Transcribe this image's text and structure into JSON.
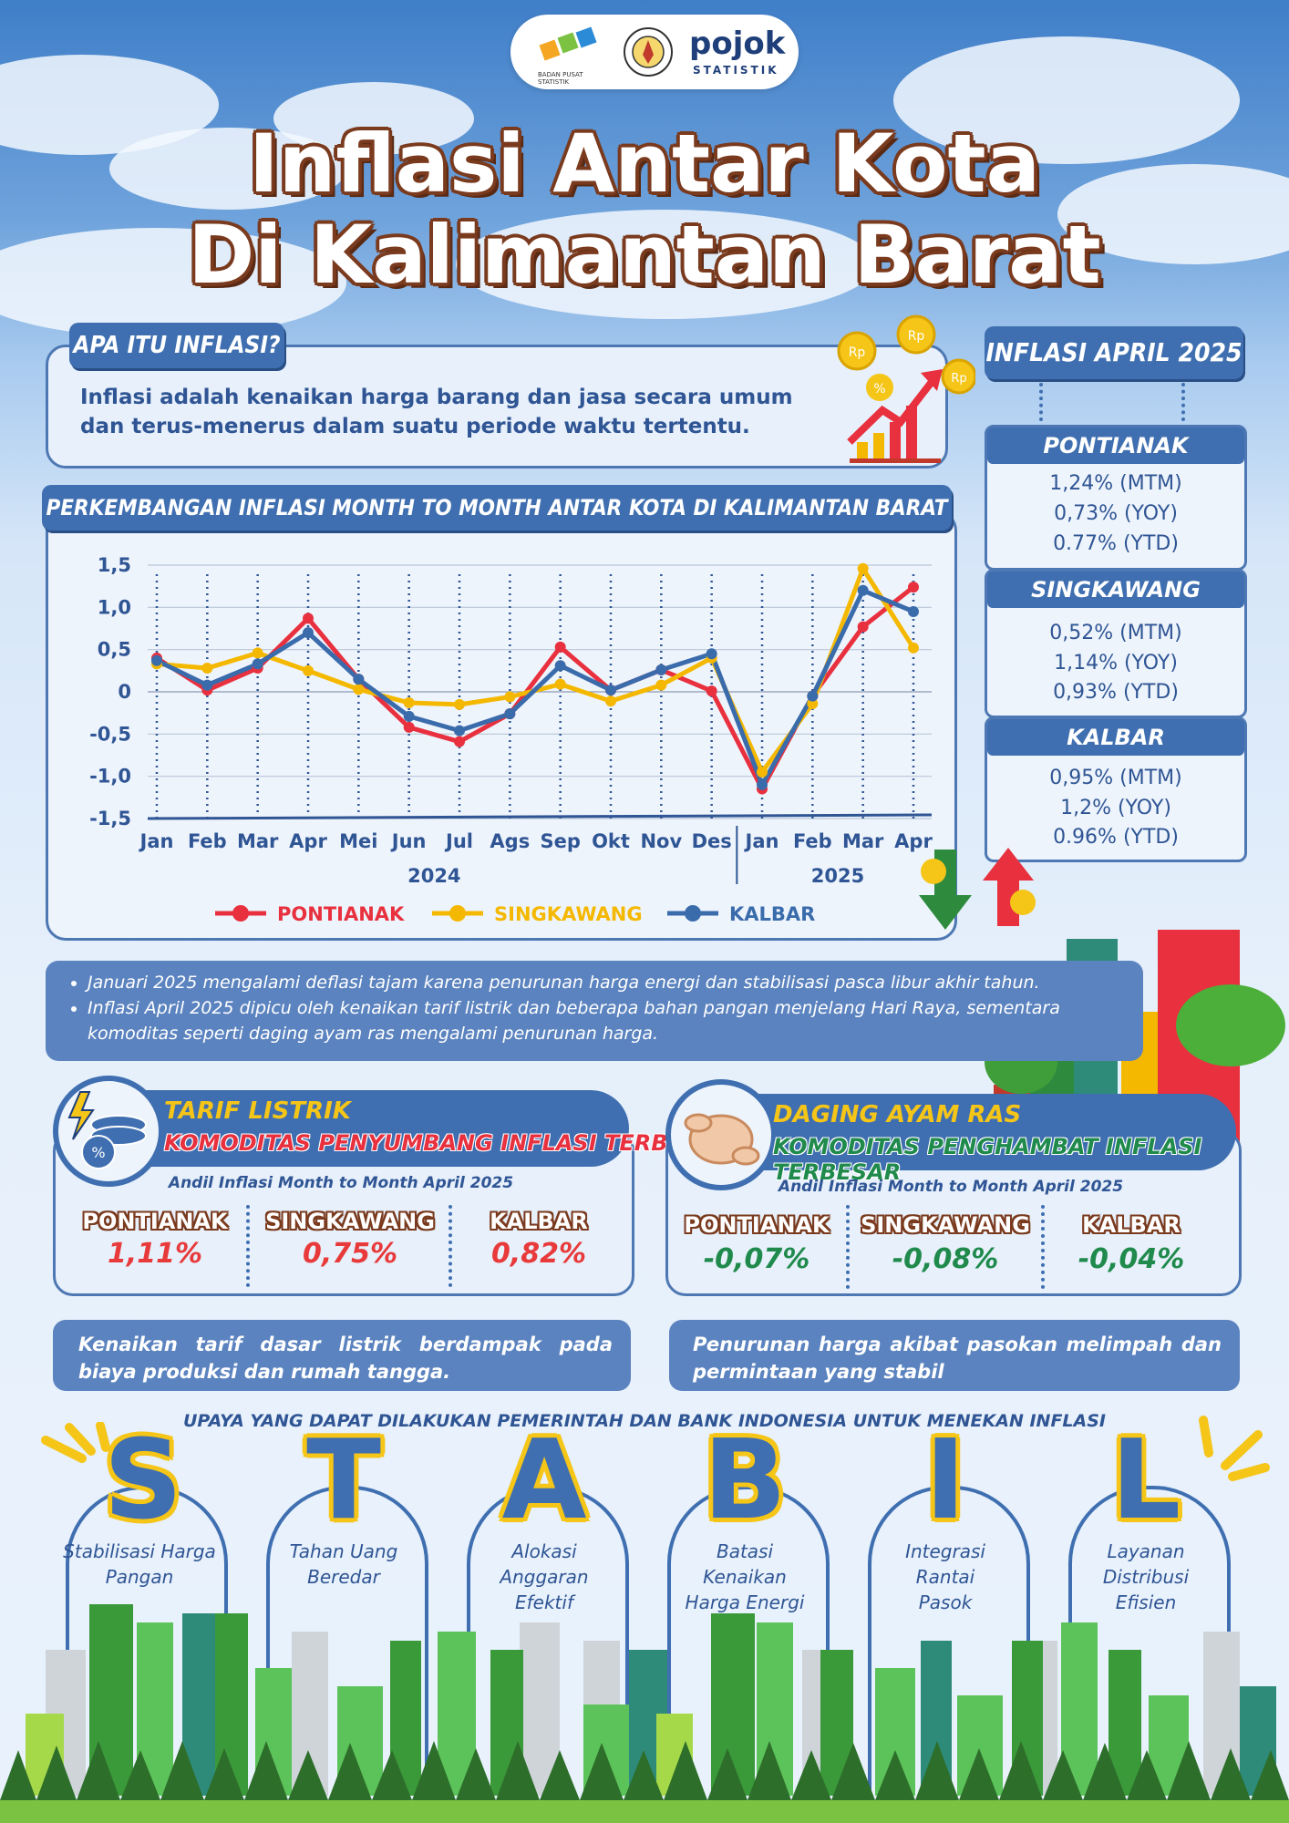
{
  "logos": {
    "bps_caption": "BADAN PUSAT STATISTIK",
    "brand_name": "pojok",
    "brand_sub": "STATISTIK"
  },
  "title": {
    "line1": "Inflasi Antar Kota",
    "line2": "Di Kalimantan Barat"
  },
  "definition": {
    "tag": "APA ITU INFLASI?",
    "text": "Inflasi adalah kenaikan harga barang dan jasa secara umum dan terus-menerus dalam suatu periode waktu tertentu."
  },
  "summary": {
    "tag": "INFLASI APRIL 2025",
    "cities": [
      {
        "name": "PONTIANAK",
        "mtm": "1,24% (MTM)",
        "yoy": "0,73% (YOY)",
        "ytd": "0.77% (YTD)"
      },
      {
        "name": "SINGKAWANG",
        "mtm": "0,52% (MTM)",
        "yoy": "1,14% (YOY)",
        "ytd": "0,93% (YTD)"
      },
      {
        "name": "KALBAR",
        "mtm": "0,95% (MTM)",
        "yoy": "1,2% (YOY)",
        "ytd": "0.96% (YTD)"
      }
    ]
  },
  "chart_data": {
    "type": "line",
    "title": "PERKEMBANGAN INFLASI MONTH TO MONTH ANTAR KOTA DI KALIMANTAN BARAT",
    "categories": [
      "Jan",
      "Feb",
      "Mar",
      "Apr",
      "Mei",
      "Jun",
      "Jul",
      "Ags",
      "Sep",
      "Okt",
      "Nov",
      "Des",
      "Jan",
      "Feb",
      "Mar",
      "Apr"
    ],
    "year_labels": [
      "2024",
      "2025"
    ],
    "ylim": [
      -1.5,
      1.5
    ],
    "yticks": [
      "1,5",
      "1,0",
      "0,5",
      "0",
      "-0,5",
      "-1,0",
      "-1,5"
    ],
    "legend_position": "bottom",
    "series": [
      {
        "name": "PONTIANAK",
        "color": "#e8303e",
        "values": [
          0.4,
          0.02,
          0.28,
          0.87,
          0.15,
          -0.42,
          -0.59,
          -0.26,
          0.53,
          0.02,
          0.26,
          0.01,
          -1.15,
          -0.05,
          0.77,
          1.24
        ]
      },
      {
        "name": "SINGKAWANG",
        "color": "#f5b800",
        "values": [
          0.33,
          0.28,
          0.46,
          0.25,
          0.03,
          -0.13,
          -0.15,
          -0.06,
          0.09,
          -0.11,
          0.08,
          0.4,
          -0.95,
          -0.14,
          1.46,
          0.52
        ]
      },
      {
        "name": "KALBAR",
        "color": "#3a6bab",
        "values": [
          0.37,
          0.08,
          0.33,
          0.7,
          0.15,
          -0.29,
          -0.46,
          -0.26,
          0.31,
          0.02,
          0.26,
          0.45,
          -1.1,
          -0.05,
          1.2,
          0.95
        ]
      }
    ]
  },
  "notes": [
    "Januari 2025 mengalami deflasi tajam karena penurunan harga energi dan stabilisasi pasca libur akhir tahun.",
    "Inflasi April 2025 dipicu oleh kenaikan tarif listrik dan beberapa bahan pangan menjelang Hari Raya, sementara komoditas seperti daging ayam ras mengalami penurunan harga."
  ],
  "contributor": {
    "commodity": "TARIF LISTRIK",
    "role": "KOMODITAS PENYUMBANG INFLASI TERBESAR",
    "subtitle": "Andil Inflasi Month to Month April 2025",
    "cities": [
      {
        "name": "PONTIANAK",
        "value": "1,11%"
      },
      {
        "name": "SINGKAWANG",
        "value": "0,75%"
      },
      {
        "name": "KALBAR",
        "value": "0,82%"
      }
    ],
    "explanation": "Kenaikan tarif dasar listrik berdampak pada biaya produksi dan rumah tangga."
  },
  "inhibitor": {
    "commodity": "DAGING AYAM RAS",
    "role": "KOMODITAS PENGHAMBAT INFLASI TERBESAR",
    "subtitle": "Andil Inflasi Month to Month April 2025",
    "cities": [
      {
        "name": "PONTIANAK",
        "value": "-0,07%"
      },
      {
        "name": "SINGKAWANG",
        "value": "-0,08%"
      },
      {
        "name": "KALBAR",
        "value": "-0,04%"
      }
    ],
    "explanation": "Penurunan harga akibat pasokan melimpah dan permintaan yang stabil"
  },
  "stabil": {
    "heading": "UPAYA YANG DAPAT DILAKUKAN PEMERINTAH DAN BANK INDONESIA UNTUK  MENEKAN INFLASI",
    "items": [
      {
        "letter": "S",
        "text": "Stabilisasi Harga Pangan"
      },
      {
        "letter": "T",
        "text": "Tahan Uang Beredar"
      },
      {
        "letter": "A",
        "text": "Alokasi Anggaran Efektif"
      },
      {
        "letter": "B",
        "text": "Batasi Kenaikan Harga Energi"
      },
      {
        "letter": "I",
        "text": "Integrasi Rantai Pasok"
      },
      {
        "letter": "L",
        "text": "Layanan Distribusi Efisien"
      }
    ]
  }
}
